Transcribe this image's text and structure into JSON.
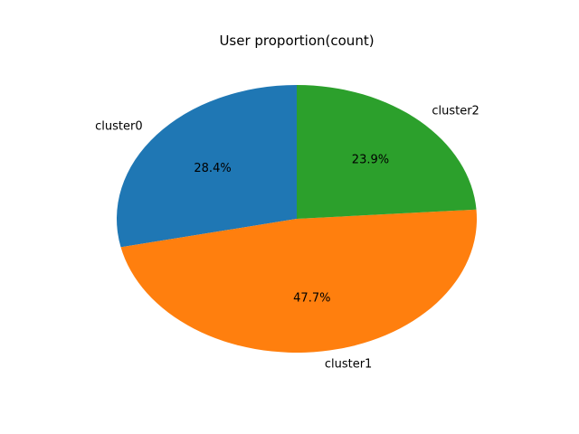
{
  "chart_data": {
    "type": "pie",
    "title": "User proportion(count)",
    "categories": [
      "cluster0",
      "cluster1",
      "cluster2"
    ],
    "values": [
      28.4,
      47.7,
      23.9
    ],
    "percent_labels": [
      "28.4%",
      "47.7%",
      "23.9%"
    ],
    "colors": [
      "#1f77b4",
      "#ff7f0e",
      "#2ca02c"
    ],
    "start_angle_deg": 90,
    "direction": "counterclockwise",
    "legend": "none"
  }
}
